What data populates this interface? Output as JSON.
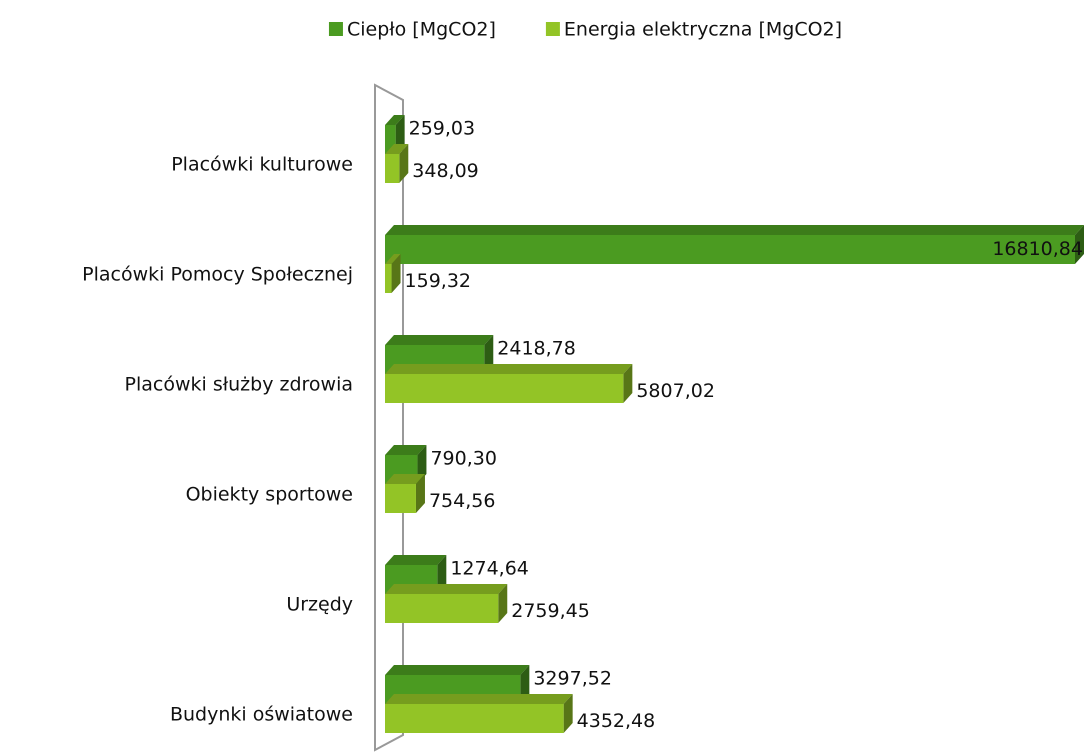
{
  "chart_data": {
    "type": "bar3d-horizontal",
    "categories": [
      "Placówki kulturowe",
      "Placówki Pomocy Społecznej",
      "Placówki służby zdrowia",
      "Obiekty sportowe",
      "Urzędy",
      "Budynki oświatowe"
    ],
    "series": [
      {
        "name": "Ciepło [MgCO2]",
        "color": "#4b9b21",
        "values": [
          259.03,
          16810.84,
          2418.78,
          790.3,
          1274.64,
          3297.52
        ],
        "value_labels": [
          "259,03",
          "16810,84",
          "2418,78",
          "790,30",
          "1274,64",
          "3297,52"
        ]
      },
      {
        "name": "Energia elektryczna [MgCO2]",
        "color": "#93c426",
        "values": [
          348.09,
          159.32,
          5807.02,
          754.56,
          2759.45,
          4352.48
        ],
        "value_labels": [
          "348,09",
          "159,32",
          "5807,02",
          "754,56",
          "2759,45",
          "4352,48"
        ]
      }
    ],
    "legend": "top"
  }
}
